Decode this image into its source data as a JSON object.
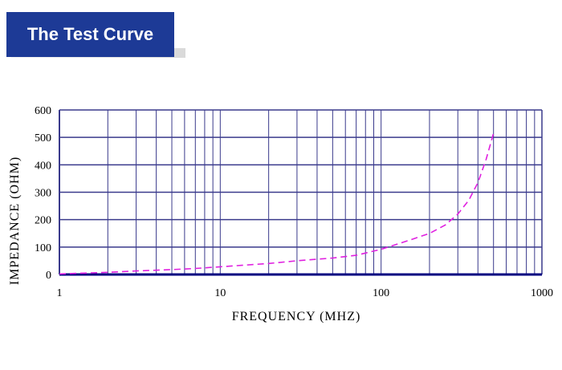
{
  "title": "The Test Curve",
  "colors": {
    "banner": "#1d3a96",
    "grid": "#3a3a8c",
    "curve": "#e020e0",
    "axis": "#000080"
  },
  "chart_data": {
    "type": "line",
    "xscale": "log",
    "xlim": [
      1,
      1000
    ],
    "ylim": [
      0,
      600
    ],
    "xlabel": "FREQUENCY (MHZ)",
    "ylabel": "IMPEDANCE (OHM)",
    "xticks": [
      "1",
      "10",
      "100",
      "1000"
    ],
    "yticks": [
      "0",
      "100",
      "200",
      "300",
      "400",
      "500",
      "600"
    ],
    "grid": true,
    "line_style": "dashed",
    "series": [
      {
        "x": [
          1,
          2,
          3,
          5,
          7,
          10,
          20,
          30,
          50,
          70,
          100,
          150,
          200,
          250,
          300,
          350,
          400,
          450,
          500
        ],
        "values": [
          2,
          8,
          13,
          18,
          22,
          28,
          40,
          50,
          60,
          70,
          92,
          125,
          150,
          180,
          220,
          270,
          335,
          420,
          515
        ]
      }
    ]
  }
}
